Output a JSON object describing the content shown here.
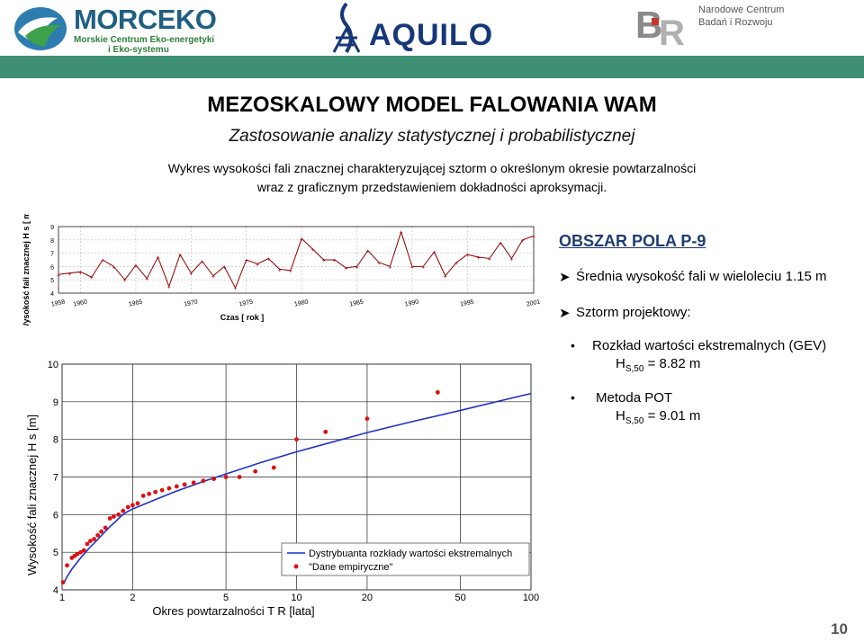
{
  "header": {
    "morceko_name": "MORCEKO",
    "morceko_sub1": "Morskie Centrum Eko-energetyki",
    "morceko_sub2": "i Eko-systemu",
    "aquilo_name": "AQUILO",
    "ncbr_line1": "Narodowe Centrum",
    "ncbr_line2": "Badań i Rozwoju"
  },
  "slide": {
    "title": "MEZOSKALOWY MODEL FALOWANIA WAM",
    "subtitle": "Zastosowanie analizy statystycznej i probabilistycznej",
    "desc_line1": "Wykres wysokości fali znacznej charakteryzującej sztorm o określonym okresie powtarzalności",
    "desc_line2": "wraz z graficznym przedstawieniem dokładności aproksymacji.",
    "page_number": "10"
  },
  "panel": {
    "area_title": "OBSZAR POLA P-9",
    "mean_height": "Średnia wysokość fali w wieloleciu 1.15 m",
    "storm_label": "Sztorm projektowy:",
    "gev_label": "Rozkład wartości ekstremalnych (GEV)",
    "gev_value_prefix": "H",
    "gev_value_sub": "S,50",
    "gev_value_rest": " = 8.82 m",
    "pot_label": "Metoda POT",
    "pot_value_prefix": "H",
    "pot_value_sub": "S,50",
    "pot_value_rest": " = 9.01 m"
  },
  "chart_data": [
    {
      "type": "line",
      "title": "",
      "xlabel": "Czas [ rok ]",
      "ylabel": "Wysokość fali znacznej H s [ m ]",
      "xlim": [
        1958,
        2001
      ],
      "ylim": [
        4,
        9
      ],
      "xticks": [
        1958,
        1960,
        1965,
        1970,
        1975,
        1980,
        1985,
        1990,
        1995,
        2001
      ],
      "yticks": [
        4,
        5,
        6,
        7,
        8,
        9
      ],
      "grid": true,
      "x": [
        1958,
        1959,
        1960,
        1961,
        1962,
        1963,
        1964,
        1965,
        1966,
        1967,
        1968,
        1969,
        1970,
        1971,
        1972,
        1973,
        1974,
        1975,
        1976,
        1977,
        1978,
        1979,
        1980,
        1981,
        1982,
        1983,
        1984,
        1985,
        1986,
        1987,
        1988,
        1989,
        1990,
        1991,
        1992,
        1993,
        1994,
        1995,
        1996,
        1997,
        1998,
        1999,
        2000,
        2001
      ],
      "y": [
        5.4,
        5.5,
        5.6,
        5.2,
        6.5,
        6.0,
        5.0,
        6.1,
        5.1,
        6.7,
        4.5,
        6.9,
        5.5,
        6.4,
        5.3,
        6.0,
        4.4,
        6.5,
        6.2,
        6.6,
        5.8,
        5.7,
        8.1,
        7.3,
        6.5,
        6.5,
        5.9,
        6.0,
        7.2,
        6.3,
        6.0,
        8.6,
        6.0,
        6.0,
        7.1,
        5.3,
        6.3,
        6.9,
        6.7,
        6.6,
        7.8,
        6.6,
        8.0,
        8.3
      ]
    },
    {
      "type": "scatter",
      "title": "",
      "xlabel": "Okres powtarzalności T R [lata]",
      "ylabel": "Wysokość fali znacznej H s [m]",
      "xscale": "log",
      "xlim": [
        1,
        100
      ],
      "ylim": [
        4,
        10
      ],
      "xticks": [
        1,
        2,
        5,
        10,
        20,
        50,
        100
      ],
      "yticks": [
        4,
        5,
        6,
        7,
        8,
        9,
        10
      ],
      "grid": true,
      "legend": "bottom-right",
      "series": [
        {
          "name": "Dystrybuanta rozkłady wartości ekstremalnych",
          "style": "line",
          "x": [
            1.01,
            1.05,
            1.1,
            1.2,
            1.3,
            1.4,
            1.5,
            1.6,
            1.7,
            1.8,
            1.9,
            2.0,
            2.5,
            3,
            4,
            5,
            7,
            10,
            15,
            20,
            30,
            50,
            70,
            100
          ],
          "y": [
            4.15,
            4.35,
            4.55,
            4.85,
            5.1,
            5.3,
            5.5,
            5.68,
            5.83,
            5.98,
            6.08,
            6.15,
            6.4,
            6.6,
            6.88,
            7.08,
            7.38,
            7.67,
            7.97,
            8.18,
            8.45,
            8.77,
            8.99,
            9.22
          ]
        },
        {
          "name": "\"Dane empiryczne\"",
          "style": "points",
          "x": [
            1.01,
            1.05,
            1.1,
            1.13,
            1.16,
            1.2,
            1.24,
            1.28,
            1.32,
            1.37,
            1.42,
            1.47,
            1.53,
            1.6,
            1.66,
            1.74,
            1.82,
            1.91,
            2.0,
            2.1,
            2.22,
            2.35,
            2.5,
            2.67,
            2.86,
            3.08,
            3.33,
            3.64,
            4.0,
            4.44,
            5.0,
            5.71,
            6.67,
            8.0,
            10.0,
            13.3,
            20.0,
            40.0
          ],
          "y": [
            4.2,
            4.65,
            4.85,
            4.9,
            4.95,
            5.0,
            5.05,
            5.22,
            5.3,
            5.35,
            5.45,
            5.55,
            5.65,
            5.9,
            5.95,
            6.0,
            6.1,
            6.2,
            6.25,
            6.3,
            6.5,
            6.55,
            6.6,
            6.65,
            6.7,
            6.75,
            6.8,
            6.85,
            6.9,
            6.95,
            7.0,
            7.0,
            7.15,
            7.25,
            8.0,
            8.2,
            8.55,
            9.25
          ]
        }
      ]
    }
  ]
}
